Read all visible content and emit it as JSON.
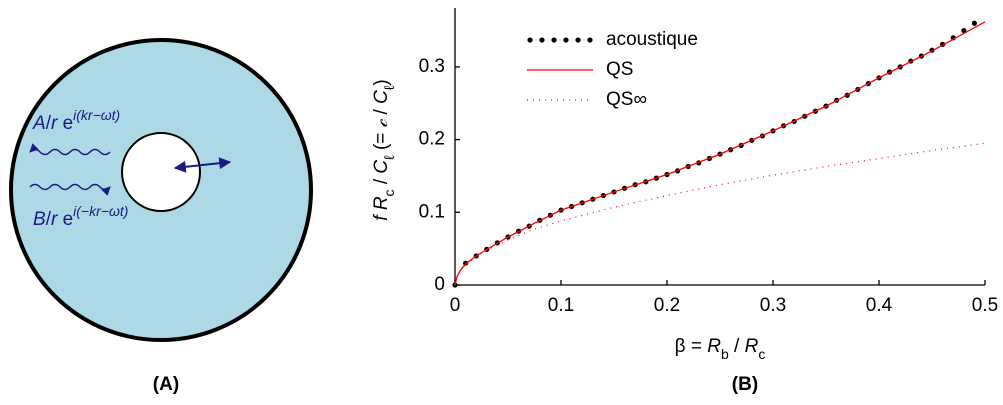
{
  "diagram": {
    "wave_out": {
      "parts": [
        {
          "text": "A",
          "italic": true
        },
        {
          "text": "/"
        },
        {
          "text": "r",
          "italic": true
        },
        {
          "text": " e"
        },
        {
          "text": "i(kr−ωt)",
          "sup": true,
          "italic": true
        }
      ]
    },
    "wave_in": {
      "parts": [
        {
          "text": "B",
          "italic": true
        },
        {
          "text": "/"
        },
        {
          "text": "r",
          "italic": true
        },
        {
          "text": " e"
        },
        {
          "text": "i(−kr−ωt)",
          "sup": true,
          "italic": true
        }
      ]
    },
    "label": "(A)"
  },
  "chart_data": {
    "type": "line",
    "panel_label": "(B)",
    "x_label": {
      "parts": [
        {
          "text": "β = "
        },
        {
          "text": "R",
          "italic": true
        },
        {
          "text": "b",
          "sub": true
        },
        {
          "text": " / "
        },
        {
          "text": "R",
          "italic": true
        },
        {
          "text": "c",
          "sub": true
        }
      ]
    },
    "y_label": {
      "parts": [
        {
          "text": "f R",
          "italic": true
        },
        {
          "text": "c",
          "sub": true
        },
        {
          "text": " / "
        },
        {
          "text": "C",
          "italic": true
        },
        {
          "text": "ℓ",
          "sub": true
        },
        {
          "text": " (= "
        },
        {
          "text": "𝒸",
          "italic": true
        },
        {
          "text": " / "
        },
        {
          "text": "C",
          "italic": true
        },
        {
          "text": "ℓ",
          "sub": true
        },
        {
          "text": ")"
        }
      ]
    },
    "xlim": [
      0,
      0.5
    ],
    "ylim": [
      0,
      0.381
    ],
    "xticks": [
      0,
      0.1,
      0.2,
      0.3,
      0.4,
      0.5
    ],
    "yticks": [
      0,
      0.1,
      0.2,
      0.3
    ],
    "legend": "upper left",
    "series": [
      {
        "name": "acoustique",
        "color": "#000000",
        "style": "dots",
        "x": [
          0,
          0.01,
          0.02,
          0.03,
          0.04,
          0.05,
          0.06,
          0.07,
          0.08,
          0.09,
          0.1,
          0.11,
          0.12,
          0.13,
          0.14,
          0.15,
          0.16,
          0.17,
          0.18,
          0.19,
          0.2,
          0.21,
          0.22,
          0.23,
          0.24,
          0.25,
          0.26,
          0.27,
          0.28,
          0.29,
          0.3,
          0.31,
          0.32,
          0.33,
          0.34,
          0.35,
          0.36,
          0.37,
          0.38,
          0.39,
          0.4,
          0.41,
          0.42,
          0.43,
          0.44,
          0.45,
          0.46,
          0.47,
          0.48,
          0.49
        ],
        "values": [
          0,
          0.03,
          0.04,
          0.049,
          0.058,
          0.066,
          0.074,
          0.081,
          0.089,
          0.096,
          0.103,
          0.108,
          0.113,
          0.118,
          0.123,
          0.128,
          0.133,
          0.138,
          0.142,
          0.147,
          0.152,
          0.157,
          0.163,
          0.168,
          0.174,
          0.18,
          0.186,
          0.192,
          0.199,
          0.205,
          0.212,
          0.219,
          0.225,
          0.232,
          0.239,
          0.246,
          0.254,
          0.261,
          0.269,
          0.277,
          0.285,
          0.293,
          0.3,
          0.308,
          0.315,
          0.323,
          0.331,
          0.34,
          0.35,
          0.36
        ]
      },
      {
        "name": "QS",
        "color": "#ff0000",
        "style": "solid",
        "x": [
          0,
          0.002,
          0.005,
          0.01,
          0.02,
          0.03,
          0.05,
          0.075,
          0.1,
          0.15,
          0.2,
          0.25,
          0.3,
          0.35,
          0.4,
          0.45,
          0.5
        ],
        "values": [
          0,
          0.012,
          0.02,
          0.029,
          0.04,
          0.049,
          0.066,
          0.085,
          0.103,
          0.128,
          0.152,
          0.18,
          0.212,
          0.246,
          0.285,
          0.322,
          0.362
        ]
      },
      {
        "name": "QS∞",
        "color": "#ff0000",
        "style": "dotted",
        "x": [
          0,
          0.002,
          0.005,
          0.01,
          0.02,
          0.03,
          0.05,
          0.075,
          0.1,
          0.15,
          0.2,
          0.25,
          0.3,
          0.35,
          0.4,
          0.45,
          0.5
        ],
        "values": [
          0,
          0.012,
          0.02,
          0.028,
          0.039,
          0.048,
          0.062,
          0.077,
          0.088,
          0.107,
          0.123,
          0.138,
          0.151,
          0.163,
          0.174,
          0.185,
          0.195
        ]
      }
    ]
  }
}
